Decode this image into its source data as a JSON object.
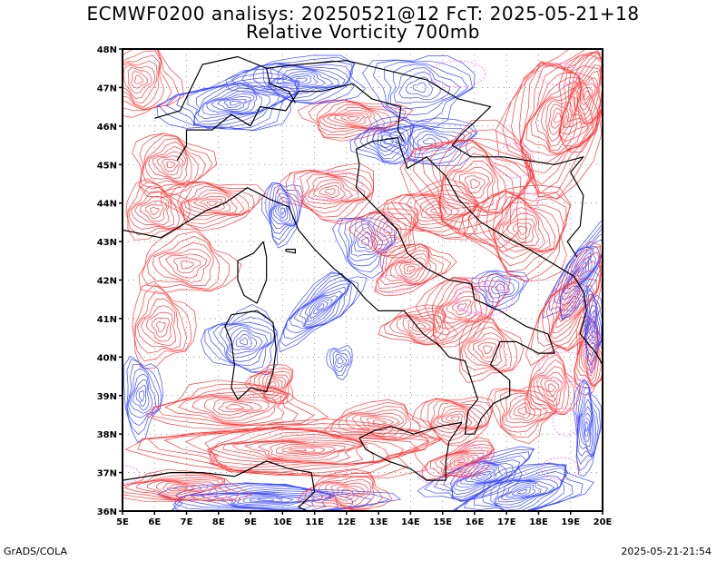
{
  "title_line1": "ECMWF0200 analisys: 20250521@12 FcT: 2025-05-21+18",
  "title_line2": "Relative Vorticity 700mb",
  "footer_left": "GrADS/COLA",
  "footer_right": "2025-05-21-21:54",
  "colors": {
    "positive_contour": "#ff3b3b",
    "negative_contour": "#3b4bff",
    "zero_contour": "#ff66ff",
    "coastline": "#000000",
    "grid": "#888888"
  },
  "map": {
    "lon_range": [
      5,
      20
    ],
    "lat_range": [
      36,
      48
    ],
    "lon_labels": [
      "5E",
      "6E",
      "7E",
      "8E",
      "9E",
      "10E",
      "11E",
      "12E",
      "13E",
      "14E",
      "15E",
      "16E",
      "17E",
      "18E",
      "19E",
      "20E"
    ],
    "lat_labels": [
      "36N",
      "37N",
      "38N",
      "39N",
      "40N",
      "41N",
      "42N",
      "43N",
      "44N",
      "45N",
      "46N",
      "47N",
      "48N"
    ],
    "grid": true
  }
}
